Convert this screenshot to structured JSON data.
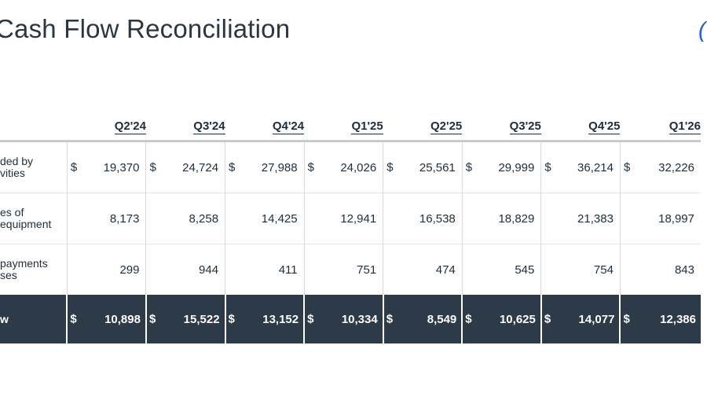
{
  "page": {
    "title": "Cash Flow Reconciliation",
    "corner_mark": "("
  },
  "table": {
    "columns": [
      "Q2'24",
      "Q3'24",
      "Q4'24",
      "Q1'25",
      "Q2'25",
      "Q3'25",
      "Q4'25",
      "Q1'26"
    ],
    "rows": [
      {
        "label_line1": "ded by",
        "label_line2": "vities",
        "currency": "$",
        "values": [
          "19,370",
          "24,724",
          "27,988",
          "24,026",
          "25,561",
          "29,999",
          "36,214",
          "32,226"
        ]
      },
      {
        "label_line1": "es of",
        "label_line2": "equipment",
        "currency": "",
        "values": [
          "8,173",
          "8,258",
          "14,425",
          "12,941",
          "16,538",
          "18,829",
          "21,383",
          "18,997"
        ]
      },
      {
        "label_line1": "payments",
        "label_line2": "ses",
        "currency": "",
        "values": [
          "299",
          "944",
          "411",
          "751",
          "474",
          "545",
          "754",
          "843"
        ]
      },
      {
        "label_line1": "w",
        "label_line2": "",
        "currency": "$",
        "values": [
          "10,898",
          "15,522",
          "13,152",
          "10,334",
          "8,549",
          "10,625",
          "14,077",
          "12,386"
        ]
      }
    ]
  },
  "colors": {
    "total_row_bg": "#2c3b47",
    "accent": "#1f5fd6"
  }
}
